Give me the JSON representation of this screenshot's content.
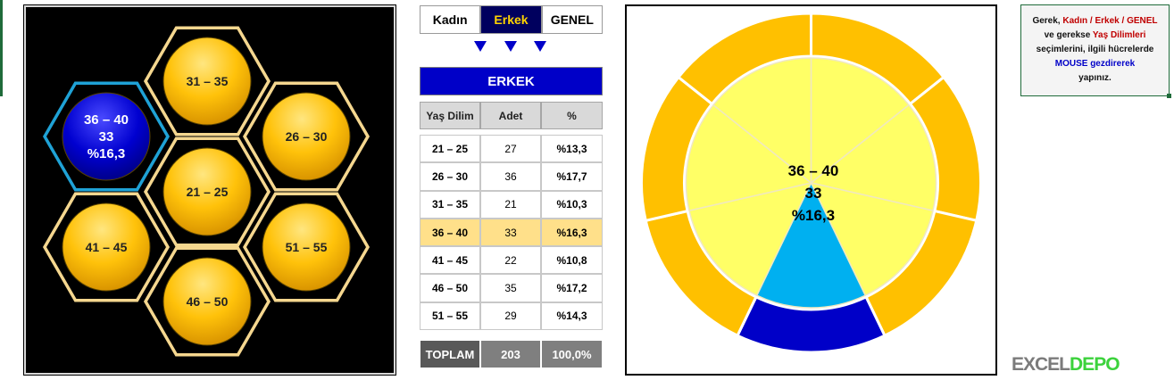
{
  "tabs": [
    {
      "label": "Kadın",
      "active": false
    },
    {
      "label": "Erkek",
      "active": true
    },
    {
      "label": "GENEL",
      "active": false
    }
  ],
  "table": {
    "title": "ERKEK",
    "headers": {
      "age": "Yaş Dilim",
      "count": "Adet",
      "pct": "%"
    },
    "rows": [
      {
        "age": "21 – 25",
        "count": "27",
        "pct": "%13,3"
      },
      {
        "age": "26 – 30",
        "count": "36",
        "pct": "%17,7"
      },
      {
        "age": "31 – 35",
        "count": "21",
        "pct": "%10,3"
      },
      {
        "age": "36 – 40",
        "count": "33",
        "pct": "%16,3"
      },
      {
        "age": "41 – 45",
        "count": "22",
        "pct": "%10,8"
      },
      {
        "age": "46 – 50",
        "count": "35",
        "pct": "%17,2"
      },
      {
        "age": "51 – 55",
        "count": "29",
        "pct": "%14,3"
      }
    ],
    "total": {
      "label": "TOPLAM",
      "count": "203",
      "pct": "100,0%"
    },
    "highlight_index": 3
  },
  "honeycomb": {
    "selected": {
      "label": "36 – 40",
      "count": "33",
      "pct": "%16,3"
    },
    "cells": [
      {
        "label": "31 – 35"
      },
      {
        "label": "26 – 30"
      },
      {
        "label": "21 – 25"
      },
      {
        "label": "41 – 45"
      },
      {
        "label": "51 – 55"
      },
      {
        "label": "46 – 50"
      }
    ]
  },
  "pie": {
    "center_label": "36 – 40",
    "center_count": "33",
    "center_pct": "%16,3",
    "slices": 7,
    "selected_index": 3
  },
  "info": {
    "line1_a": "Gerek,",
    "line1_b": "Kadın / Erkek / GENEL",
    "line2_a": "ve gerekse",
    "line2_b": "Yaş Dilimleri",
    "line3": "seçimlerini, ilgili hücrelerde",
    "line4": "MOUSE gezdirerek",
    "line5": "yapınız."
  },
  "logo": {
    "part1": "EXCEL",
    "part2": "DEPO"
  },
  "colors": {
    "gold": "#ffc000",
    "hex_border": "#f5d78f",
    "selected_hex_border": "#1fa2d6",
    "selected_fill": "#0000c8",
    "pie_inner": "#ffff66",
    "pie_selected": "#00b0f0",
    "pie_outer": "#ffc000",
    "pie_outer_selected": "#0000c8"
  }
}
